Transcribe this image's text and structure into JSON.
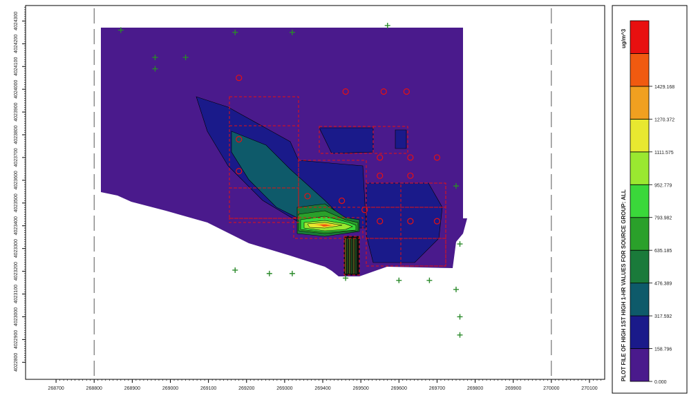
{
  "chart_data": {
    "type": "heatmap",
    "title": "",
    "xlabel": "",
    "ylabel": "",
    "xlim": [
      268620,
      270140
    ],
    "ylim": [
      4022725,
      4024368
    ],
    "x_ticks": [
      "268700",
      "268800",
      "268900",
      "269000",
      "269100",
      "269200",
      "269300",
      "269400",
      "269500",
      "269600",
      "269700",
      "269800",
      "269900",
      "270000",
      "270100"
    ],
    "y_ticks": [
      "4022800",
      "4022900",
      "4023000",
      "4023100",
      "4023200",
      "4023300",
      "4023400",
      "4023500",
      "4023600",
      "4023700",
      "4023800",
      "4023900",
      "4024000",
      "4024100",
      "4024200",
      "4024300"
    ],
    "boundary_lines_x": [
      268800,
      270000
    ],
    "legend": {
      "title": "PLOT FILE OF HIGH 1ST HIGH 1-HR VALUES FOR SOURCE GROUP: ALL",
      "units": "ug/m^3",
      "levels": [
        {
          "value": "0.000",
          "color": "#4a1a8c"
        },
        {
          "value": "158.796",
          "color": "#1a1a8a"
        },
        {
          "value": "317.592",
          "color": "#0e5a6a"
        },
        {
          "value": "476.389",
          "color": "#1a7a3a"
        },
        {
          "value": "635.185",
          "color": "#2aa02a"
        },
        {
          "value": "793.982",
          "color": "#3ad83a"
        },
        {
          "value": "952.779",
          "color": "#9ae830"
        },
        {
          "value": "1111.575",
          "color": "#e8e830"
        },
        {
          "value": "1270.372",
          "color": "#f0a020"
        },
        {
          "value": "1429.168",
          "color": "#f05a10"
        },
        {
          "value": "",
          "color": "#e81010"
        }
      ]
    },
    "receptors": [
      [
        268870,
        4024260
      ],
      [
        268960,
        4024140
      ],
      [
        268960,
        4024090
      ],
      [
        269040,
        4024140
      ],
      [
        269170,
        4024250
      ],
      [
        269320,
        4024250
      ],
      [
        269570,
        4024280
      ],
      [
        269750,
        4023575
      ],
      [
        269760,
        4023320
      ],
      [
        269170,
        4023205
      ],
      [
        269260,
        4023190
      ],
      [
        269320,
        4023190
      ],
      [
        269460,
        4023170
      ],
      [
        269600,
        4023160
      ],
      [
        269680,
        4023160
      ],
      [
        269750,
        4023120
      ],
      [
        269760,
        4023000
      ],
      [
        269760,
        4022920
      ]
    ],
    "sources": [
      {
        "label": "",
        "x": 269180,
        "y": 4024050
      },
      {
        "label": "",
        "x": 269180,
        "y": 4023780
      },
      {
        "label": "",
        "x": 269180,
        "y": 4023640
      },
      {
        "label": "",
        "x": 269360,
        "y": 4023530
      },
      {
        "label": "",
        "x": 269460,
        "y": 4023990
      },
      {
        "label": "",
        "x": 269560,
        "y": 4023990
      },
      {
        "label": "",
        "x": 269620,
        "y": 4023990
      },
      {
        "label": "",
        "x": 269550,
        "y": 4023700
      },
      {
        "label": "",
        "x": 269550,
        "y": 4023620
      },
      {
        "label": "",
        "x": 269630,
        "y": 4023700
      },
      {
        "label": "",
        "x": 269630,
        "y": 4023620
      },
      {
        "label": "",
        "x": 269700,
        "y": 4023700
      },
      {
        "label": "",
        "x": 269550,
        "y": 4023420
      },
      {
        "label": "",
        "x": 269630,
        "y": 4023420
      },
      {
        "label": "",
        "x": 269700,
        "y": 4023420
      },
      {
        "label": "",
        "x": 269450,
        "y": 4023510
      },
      {
        "label": "",
        "x": 269510,
        "y": 4023470
      }
    ]
  }
}
